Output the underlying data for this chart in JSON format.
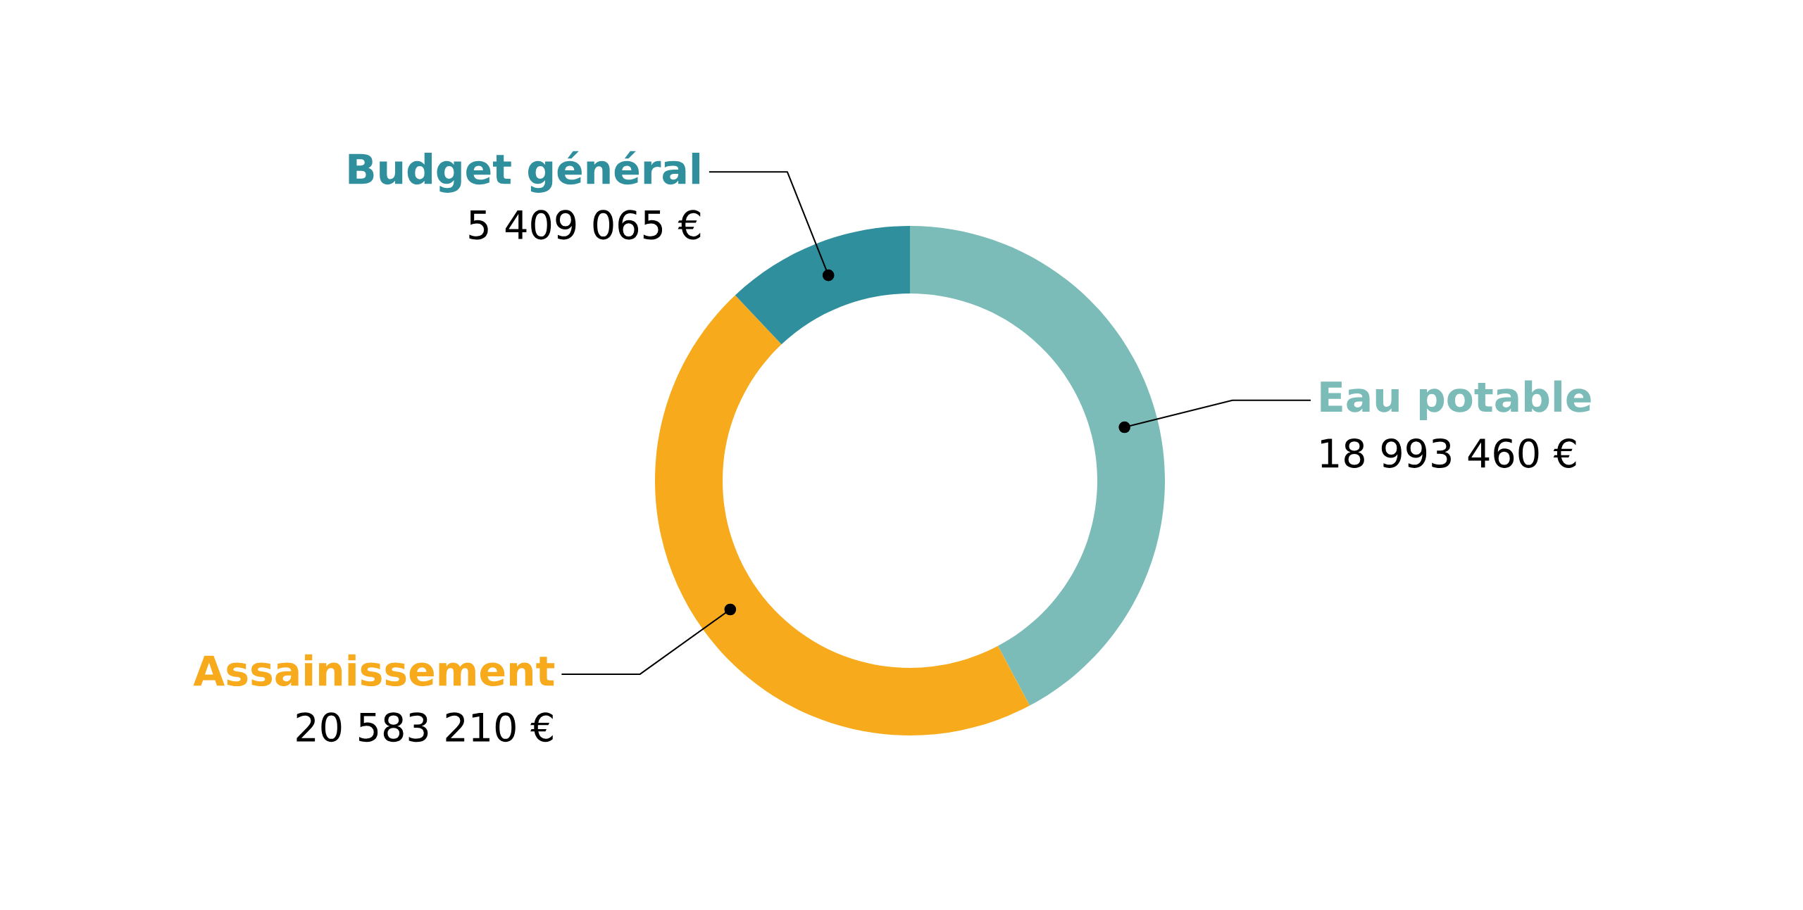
{
  "chart_data": {
    "type": "donut",
    "categories": [
      "Eau potable",
      "Assainissement",
      "Budget général"
    ],
    "values": [
      18993460,
      20583210,
      5409065
    ],
    "colors": [
      "#7bbbb8",
      "#f6aa1c",
      "#2f8f9d"
    ],
    "value_labels": [
      "18 993 460 €",
      "20 583 210 €",
      "5 409 065 €"
    ]
  }
}
